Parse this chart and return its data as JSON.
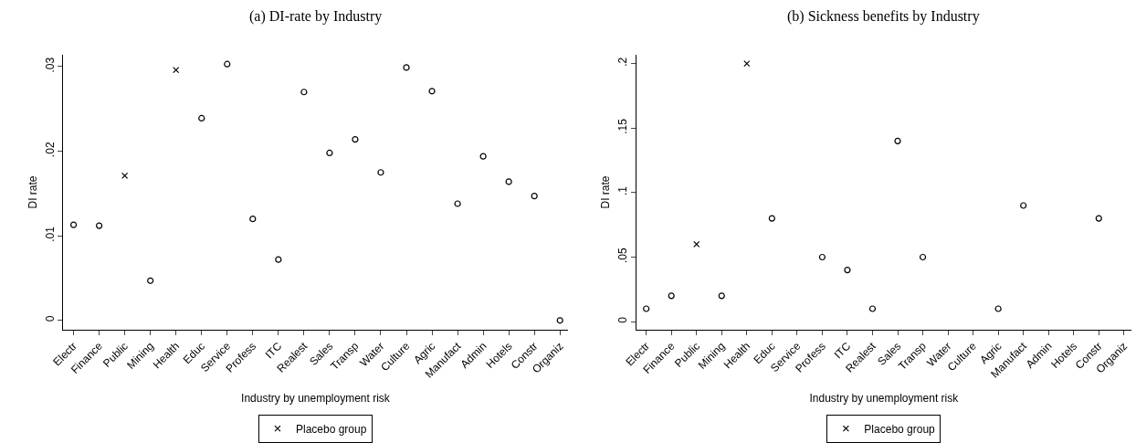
{
  "chart_data": [
    {
      "type": "scatter",
      "title": "(a) DI-rate by Industry",
      "xlabel": "Industry by unemployment risk",
      "ylabel": "DI rate",
      "categories": [
        "Electr",
        "Finance",
        "Public",
        "Mining",
        "Health",
        "Educ",
        "Service",
        "Profess",
        "ITC",
        "Realest",
        "Sales",
        "Transp",
        "Water",
        "Culture",
        "Agric",
        "Manufact",
        "Admin",
        "Hotels",
        "Constr",
        "Organiz"
      ],
      "series": [
        {
          "color": "#000000",
          "marker": "circle",
          "values": [
            0.0113,
            0.0112,
            null,
            0.0047,
            null,
            0.0239,
            0.0303,
            0.012,
            0.0072,
            0.027,
            0.0198,
            0.0214,
            0.0175,
            0.0299,
            0.0271,
            0.0138,
            0.0194,
            0.0164,
            0.0147,
            0.0
          ]
        },
        {
          "name": "Placebo group",
          "color": "#000000",
          "marker": "cross",
          "values": [
            null,
            null,
            0.0171,
            null,
            0.0296,
            null,
            null,
            null,
            null,
            null,
            null,
            null,
            null,
            null,
            null,
            null,
            null,
            null,
            null,
            null
          ]
        }
      ],
      "ylim": [
        -0.0011,
        0.0314
      ],
      "yticks": [
        0,
        {
          "value": 0.01,
          "label": ".01"
        },
        {
          "value": 0.02,
          "label": ".02"
        },
        {
          "value": 0.03,
          "label": ".03"
        }
      ],
      "grid": false,
      "legend": "bottom"
    },
    {
      "type": "scatter",
      "title": "(b) Sickness benefits by Industry",
      "xlabel": "Industry by unemployment risk",
      "ylabel": "DI rate",
      "categories": [
        "Electr",
        "Finance",
        "Public",
        "Mining",
        "Health",
        "Educ",
        "Service",
        "Profess",
        "ITC",
        "Realest",
        "Sales",
        "Transp",
        "Water",
        "Culture",
        "Agric",
        "Manufact",
        "Admin",
        "Hotels",
        "Constr",
        "Organiz"
      ],
      "series": [
        {
          "color": "#000000",
          "marker": "circle",
          "values": [
            0.01,
            0.02,
            null,
            0.02,
            null,
            0.08,
            null,
            0.05,
            0.04,
            0.01,
            0.14,
            0.05,
            null,
            null,
            0.01,
            0.09,
            null,
            null,
            0.08,
            null
          ]
        },
        {
          "name": "Placebo group",
          "color": "#000000",
          "marker": "cross",
          "values": [
            null,
            null,
            0.06,
            null,
            0.2,
            null,
            null,
            null,
            null,
            null,
            null,
            null,
            null,
            null,
            null,
            null,
            null,
            null,
            null,
            null
          ]
        }
      ],
      "ylim": [
        -0.0063,
        0.2068
      ],
      "yticks": [
        0,
        {
          "value": 0.05,
          "label": ".05"
        },
        {
          "value": 0.1,
          "label": ".1"
        },
        {
          "value": 0.15,
          "label": ".15"
        },
        {
          "value": 0.2,
          "label": ".2"
        }
      ],
      "grid": false,
      "legend": "bottom"
    }
  ]
}
